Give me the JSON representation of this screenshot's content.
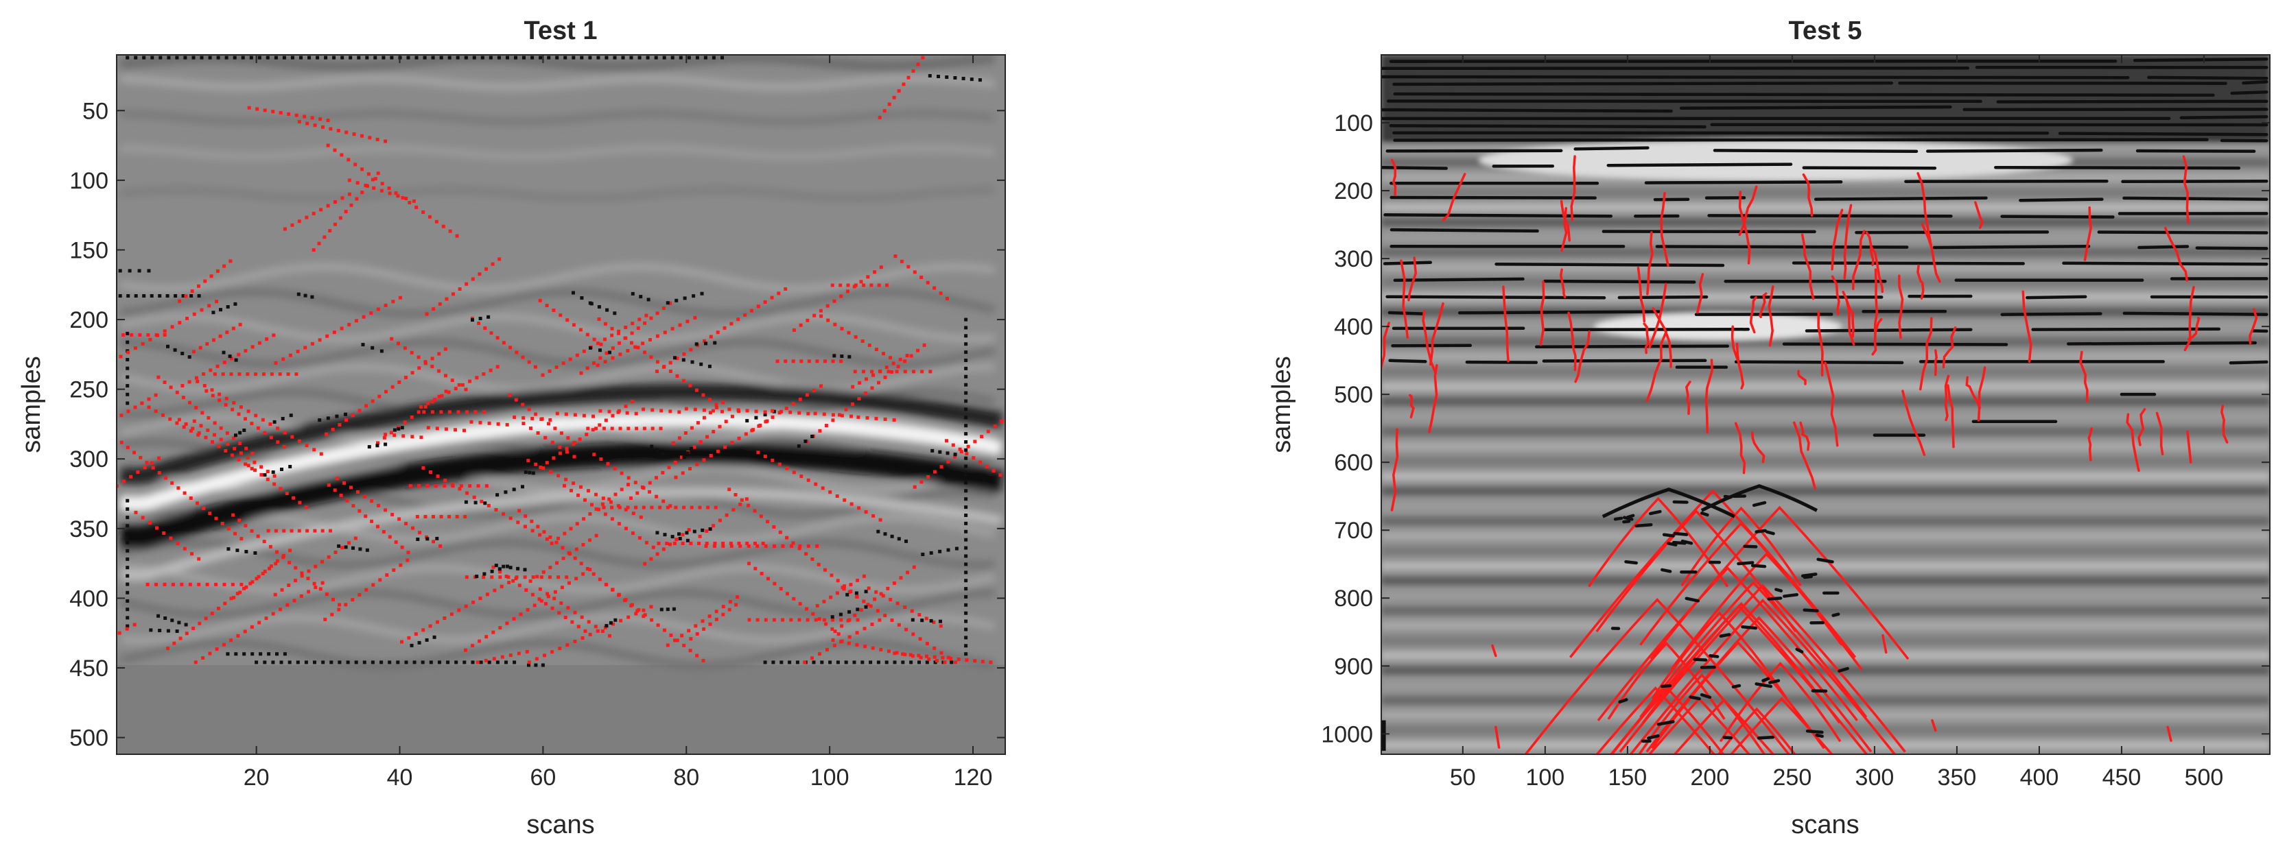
{
  "charts": [
    {
      "type": "heatmap",
      "title": "Test 1",
      "xlabel": "scans",
      "ylabel": "samples",
      "xlim": [
        0.5,
        124.5
      ],
      "ylim": [
        512,
        10
      ],
      "y_reversed": true,
      "xticks": [
        20,
        40,
        60,
        80,
        100,
        120
      ],
      "yticks": [
        50,
        100,
        150,
        200,
        250,
        300,
        350,
        400,
        450,
        500
      ],
      "background": "grayscale B-scan (GPR radargram)",
      "reflection": {
        "apex_x": 80,
        "apex_y": 282,
        "x_range": [
          4,
          120
        ],
        "depth_at_edges": 330
      },
      "data_end_sample": 448,
      "marker_colors": {
        "red": "#ff1a1a",
        "black": "#101010"
      },
      "grid": false
    },
    {
      "type": "heatmap",
      "title": "Test 5",
      "xlabel": "scans",
      "ylabel": "samples",
      "xlim": [
        0.5,
        540
      ],
      "ylim": [
        1030,
        0
      ],
      "y_reversed": true,
      "xticks": [
        50,
        100,
        150,
        200,
        250,
        300,
        350,
        400,
        450,
        500
      ],
      "yticks": [
        100,
        200,
        300,
        400,
        500,
        600,
        700,
        800,
        900,
        1000
      ],
      "background": "grayscale B-scan (GPR radargram)",
      "hyperbola_cluster": {
        "center_x": 205,
        "top_y": 640,
        "x_range": [
          120,
          290
        ]
      },
      "marker_colors": {
        "red": "#ff1a1a",
        "black": "#101010"
      },
      "grid": false
    }
  ]
}
